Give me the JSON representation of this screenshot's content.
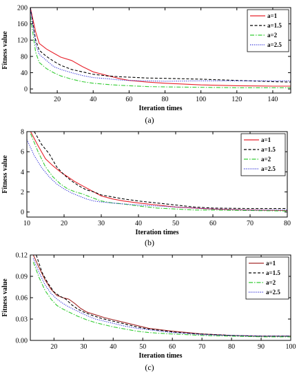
{
  "chart_data": [
    {
      "type": "line",
      "panel_label": "(a)",
      "xlabel": "Iteration times",
      "ylabel": "Fitness value",
      "xlim": [
        5,
        150
      ],
      "ylim": [
        -10,
        200
      ],
      "xticks": [
        20,
        40,
        60,
        80,
        100,
        120,
        140
      ],
      "yticks": [
        0,
        40,
        80,
        120,
        160,
        200
      ],
      "legend_position": "top-right",
      "series": [
        {
          "name": "a=1",
          "color": "#e8202a",
          "dash": "solid",
          "x": [
            5,
            8,
            10,
            14,
            18,
            22,
            28,
            34,
            40,
            48,
            55,
            60,
            70,
            80,
            100,
            120,
            140,
            150
          ],
          "y": [
            200,
            140,
            112,
            98,
            88,
            78,
            70,
            55,
            42,
            33,
            25,
            21,
            17,
            14,
            10,
            8,
            7,
            7
          ]
        },
        {
          "name": "a=1.5",
          "color": "#000000",
          "dash": "dashed",
          "x": [
            5,
            8,
            10,
            14,
            18,
            22,
            28,
            34,
            40,
            48,
            55,
            60,
            70,
            80,
            100,
            120,
            140,
            150
          ],
          "y": [
            200,
            120,
            95,
            80,
            68,
            58,
            48,
            42,
            36,
            32,
            30,
            29,
            27,
            26,
            24,
            21,
            18,
            17
          ]
        },
        {
          "name": "a=2",
          "color": "#33cc33",
          "dash": "dashdot",
          "x": [
            5,
            8,
            10,
            14,
            18,
            22,
            28,
            34,
            40,
            48,
            55,
            60,
            70,
            80,
            100,
            120,
            140,
            150
          ],
          "y": [
            180,
            90,
            65,
            50,
            40,
            32,
            24,
            18,
            14,
            11,
            9,
            8,
            6,
            5,
            4,
            3,
            3,
            3
          ]
        },
        {
          "name": "a=2.5",
          "color": "#2b2bd8",
          "dash": "dotted",
          "x": [
            5,
            8,
            10,
            14,
            18,
            22,
            28,
            34,
            40,
            48,
            55,
            60,
            70,
            80,
            100,
            120,
            140,
            150
          ],
          "y": [
            200,
            110,
            85,
            70,
            55,
            48,
            40,
            33,
            28,
            25,
            22,
            21,
            20,
            19,
            20,
            20,
            20,
            20
          ]
        }
      ]
    },
    {
      "type": "line",
      "panel_label": "(b)",
      "xlabel": "Iteration times",
      "ylabel": "Fitness value",
      "xlim": [
        10,
        80
      ],
      "ylim": [
        -0.5,
        8
      ],
      "xticks": [
        10,
        20,
        30,
        40,
        50,
        60,
        70,
        80
      ],
      "yticks": [
        0,
        2,
        4,
        6,
        8
      ],
      "legend_position": "top-right",
      "series": [
        {
          "name": "a=1",
          "color": "#e8202a",
          "dash": "solid",
          "x": [
            11,
            13,
            15,
            17,
            19,
            21,
            23,
            25,
            27,
            30,
            33,
            36,
            40,
            45,
            50,
            55,
            60,
            70,
            80
          ],
          "y": [
            8.0,
            6.6,
            5.3,
            4.6,
            4.0,
            3.5,
            3.0,
            2.6,
            2.2,
            1.6,
            1.3,
            1.1,
            0.9,
            0.7,
            0.5,
            0.4,
            0.3,
            0.2,
            0.15
          ]
        },
        {
          "name": "a=1.5",
          "color": "#000000",
          "dash": "dashed",
          "x": [
            12,
            14,
            16,
            18,
            20,
            22,
            24,
            26,
            28,
            30,
            33,
            36,
            40,
            45,
            50,
            55,
            60,
            70,
            80
          ],
          "y": [
            8.0,
            6.7,
            5.8,
            4.5,
            3.7,
            3.1,
            2.6,
            2.2,
            2.0,
            1.7,
            1.5,
            1.3,
            1.1,
            0.9,
            0.7,
            0.5,
            0.4,
            0.35,
            0.35
          ]
        },
        {
          "name": "a=2",
          "color": "#33cc33",
          "dash": "dashdot",
          "x": [
            11,
            13,
            15,
            17,
            19,
            21,
            23,
            25,
            27,
            30,
            33,
            36,
            40,
            45,
            50,
            55,
            60,
            70,
            80
          ],
          "y": [
            7.8,
            6.0,
            4.5,
            3.5,
            2.8,
            2.3,
            2.0,
            1.8,
            1.5,
            1.1,
            0.9,
            0.8,
            0.6,
            0.4,
            0.3,
            0.2,
            0.2,
            0.15,
            0.1
          ]
        },
        {
          "name": "a=2.5",
          "color": "#2b2bd8",
          "dash": "dotted",
          "x": [
            10,
            12,
            14,
            16,
            18,
            20,
            22,
            24,
            26,
            28,
            30,
            33,
            36,
            40,
            45,
            50,
            55,
            60,
            70,
            80
          ],
          "y": [
            7.2,
            5.6,
            4.4,
            3.5,
            2.8,
            2.3,
            1.9,
            1.6,
            1.3,
            1.1,
            1.0,
            0.9,
            0.8,
            0.7,
            0.6,
            0.5,
            0.4,
            0.3,
            0.2,
            0.2
          ]
        }
      ]
    },
    {
      "type": "line",
      "panel_label": "(c)",
      "xlabel": "Iteration times",
      "ylabel": "Fitness value",
      "xlim": [
        12,
        100
      ],
      "ylim": [
        0,
        0.12
      ],
      "xticks": [
        20,
        30,
        40,
        50,
        60,
        70,
        80,
        90,
        100
      ],
      "yticks": [
        0.0,
        0.03,
        0.06,
        0.09,
        0.12
      ],
      "ytick_labels": [
        "0.00",
        "0.03",
        "0.06",
        "0.09",
        "0.12"
      ],
      "legend_position": "top-right",
      "series": [
        {
          "name": "a=1",
          "color": "#a52a2a",
          "dash": "solid",
          "x": [
            13,
            15,
            17,
            19,
            21,
            23,
            25,
            27,
            29,
            31,
            34,
            37,
            40,
            44,
            48,
            52,
            56,
            60,
            65,
            70,
            80,
            90,
            100
          ],
          "y": [
            0.12,
            0.102,
            0.085,
            0.072,
            0.063,
            0.06,
            0.058,
            0.052,
            0.045,
            0.04,
            0.036,
            0.032,
            0.029,
            0.025,
            0.021,
            0.017,
            0.015,
            0.013,
            0.011,
            0.009,
            0.007,
            0.006,
            0.006
          ]
        },
        {
          "name": "a=1.5",
          "color": "#000000",
          "dash": "dashed",
          "x": [
            14,
            16,
            18,
            20,
            22,
            24,
            26,
            28,
            30,
            33,
            36,
            40,
            44,
            48,
            52,
            56,
            60,
            65,
            70,
            80,
            90,
            100
          ],
          "y": [
            0.12,
            0.095,
            0.08,
            0.068,
            0.062,
            0.058,
            0.05,
            0.044,
            0.04,
            0.035,
            0.031,
            0.027,
            0.023,
            0.019,
            0.016,
            0.014,
            0.012,
            0.01,
            0.009,
            0.007,
            0.006,
            0.006
          ]
        },
        {
          "name": "a=2",
          "color": "#33cc33",
          "dash": "dashdot",
          "x": [
            13,
            15,
            17,
            19,
            21,
            23,
            25,
            28,
            31,
            34,
            37,
            40,
            44,
            48,
            52,
            56,
            60,
            65,
            70,
            80,
            90,
            100
          ],
          "y": [
            0.11,
            0.088,
            0.07,
            0.058,
            0.049,
            0.044,
            0.04,
            0.034,
            0.029,
            0.025,
            0.022,
            0.019,
            0.016,
            0.013,
            0.011,
            0.01,
            0.009,
            0.008,
            0.007,
            0.006,
            0.005,
            0.005
          ]
        },
        {
          "name": "a=2.5",
          "color": "#2b2bd8",
          "dash": "dotted",
          "x": [
            13,
            15,
            17,
            19,
            21,
            23,
            25,
            28,
            31,
            34,
            37,
            40,
            44,
            48,
            52,
            56,
            60,
            65,
            70,
            80,
            90,
            100
          ],
          "y": [
            0.115,
            0.095,
            0.078,
            0.066,
            0.058,
            0.052,
            0.047,
            0.041,
            0.035,
            0.03,
            0.027,
            0.024,
            0.02,
            0.017,
            0.015,
            0.013,
            0.011,
            0.01,
            0.008,
            0.007,
            0.006,
            0.006
          ]
        }
      ]
    }
  ]
}
